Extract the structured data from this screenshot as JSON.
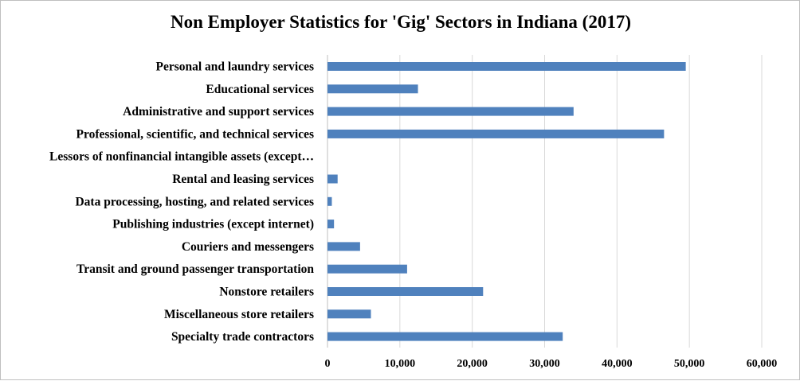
{
  "chart_data": {
    "type": "bar",
    "orientation": "horizontal",
    "title": "Non Employer Statistics for 'Gig' Sectors in Indiana (2017)",
    "xlabel": "",
    "ylabel": "",
    "xlim": [
      0,
      60000
    ],
    "grid": true,
    "legend": "none",
    "bar_color": "#4f81bd",
    "categories": [
      "Personal and laundry services",
      "Educational services",
      "Administrative and support services",
      "Professional, scientific, and technical services",
      "Lessors of nonfinancial intangible assets (except…",
      "Rental and leasing services",
      "Data processing, hosting, and related services",
      "Publishing industries (except internet)",
      "Couriers and messengers",
      "Transit and ground passenger transportation",
      "Nonstore retailers",
      "Miscellaneous store retailers",
      "Specialty trade contractors"
    ],
    "values": [
      49500,
      12500,
      34000,
      46500,
      0,
      1400,
      600,
      900,
      4500,
      11000,
      21500,
      6000,
      32500
    ],
    "x_ticks": [
      0,
      10000,
      20000,
      30000,
      40000,
      50000,
      60000
    ],
    "x_tick_labels": [
      "0",
      "10,000",
      "20,000",
      "30,000",
      "40,000",
      "50,000",
      "60,000"
    ]
  }
}
